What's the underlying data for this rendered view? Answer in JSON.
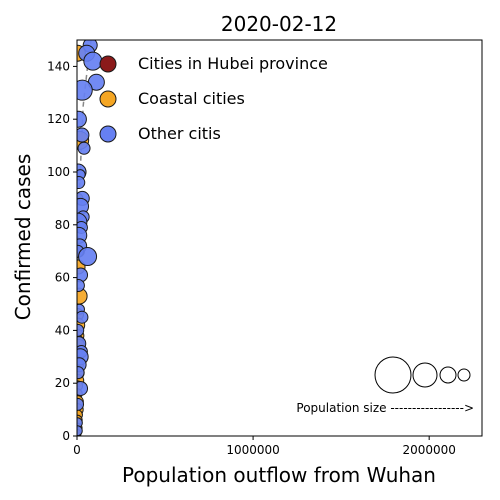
{
  "chart_data": {
    "type": "scatter",
    "title": "2020-02-12",
    "xlabel": "Population outflow from Wuhan",
    "ylabel": "Confirmed cases",
    "xlim": [
      0,
      2300000
    ],
    "ylim": [
      0,
      150
    ],
    "x_ticks": [
      0,
      1000000,
      2000000
    ],
    "x_tick_labels": [
      "0",
      "1000000",
      "2000000"
    ],
    "y_ticks": [
      0,
      20,
      40,
      60,
      80,
      100,
      120,
      140
    ],
    "y_tick_labels": [
      "0",
      "20",
      "40",
      "60",
      "80",
      "100",
      "120",
      "140"
    ],
    "grid": false,
    "legend_position": "top-left",
    "series": [
      {
        "name": "Cities in Hubei province",
        "color": "#8b1a1a",
        "points": []
      },
      {
        "name": "Coastal cities",
        "color": "#f5a623",
        "points": [
          [
            2000,
            145,
            8
          ],
          [
            15000,
            112,
            9
          ],
          [
            5000,
            90,
            5
          ],
          [
            8000,
            70,
            6
          ],
          [
            6000,
            64,
            7
          ],
          [
            12000,
            53,
            8
          ],
          [
            3000,
            46,
            6
          ],
          [
            4000,
            42,
            7
          ],
          [
            5000,
            38,
            6
          ],
          [
            2000,
            36,
            6
          ],
          [
            7000,
            34,
            7
          ],
          [
            3000,
            30,
            6
          ],
          [
            2000,
            27,
            6
          ],
          [
            1000,
            24,
            7
          ],
          [
            4000,
            21,
            6
          ],
          [
            3000,
            19,
            5
          ],
          [
            1500,
            16,
            5
          ],
          [
            2000,
            13,
            6
          ],
          [
            1000,
            10,
            6
          ],
          [
            2500,
            8,
            5
          ],
          [
            1000,
            6,
            5
          ],
          [
            500,
            3,
            5
          ],
          [
            800,
            1,
            4
          ]
        ]
      },
      {
        "name": "Other citis",
        "color": "#6680f2",
        "points": [
          [
            75000,
            148,
            7
          ],
          [
            55000,
            145,
            8
          ],
          [
            90000,
            142,
            9
          ],
          [
            110000,
            134,
            8
          ],
          [
            30000,
            131,
            10
          ],
          [
            8000,
            120,
            8
          ],
          [
            28000,
            114,
            7
          ],
          [
            40000,
            109,
            6
          ],
          [
            6000,
            100,
            8
          ],
          [
            18000,
            99,
            5
          ],
          [
            10000,
            96,
            6
          ],
          [
            30000,
            90,
            7
          ],
          [
            20000,
            87,
            8
          ],
          [
            35000,
            83,
            6
          ],
          [
            5000,
            81,
            9
          ],
          [
            25000,
            79,
            6
          ],
          [
            10000,
            76,
            8
          ],
          [
            15000,
            72,
            7
          ],
          [
            3000,
            70,
            6
          ],
          [
            60000,
            68,
            9
          ],
          [
            20000,
            61,
            7
          ],
          [
            8000,
            57,
            6
          ],
          [
            14000,
            48,
            5
          ],
          [
            28000,
            45,
            6
          ],
          [
            4000,
            40,
            6
          ],
          [
            10000,
            35,
            7
          ],
          [
            25000,
            32,
            6
          ],
          [
            18000,
            30,
            8
          ],
          [
            12000,
            27,
            7
          ],
          [
            6000,
            24,
            6
          ],
          [
            20000,
            18,
            7
          ],
          [
            3000,
            12,
            6
          ],
          [
            2000,
            5,
            5
          ],
          [
            1500,
            2,
            5
          ]
        ]
      }
    ],
    "annotation": "Population size ----------------->"
  }
}
